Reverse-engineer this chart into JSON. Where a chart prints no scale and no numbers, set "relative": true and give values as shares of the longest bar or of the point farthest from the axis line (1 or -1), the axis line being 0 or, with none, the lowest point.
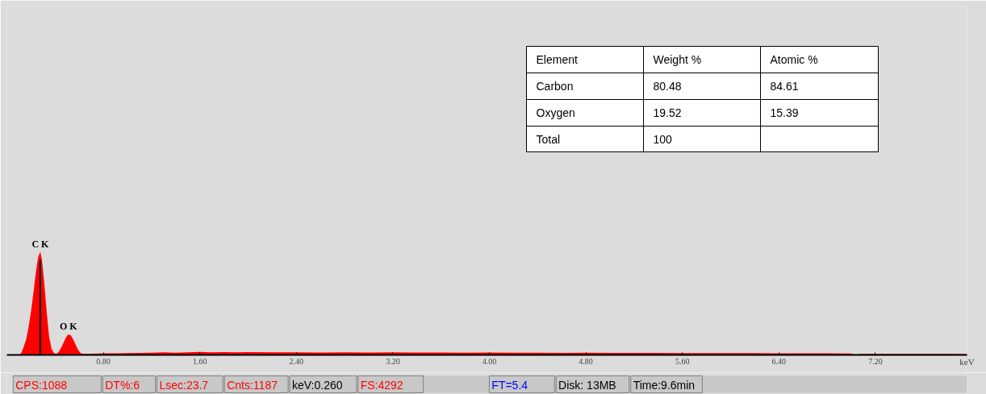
{
  "chart_data": {
    "type": "area",
    "relative": true,
    "xlabel": "keV",
    "color": "#ff0000",
    "x": [
      0.1,
      0.12,
      0.14,
      0.16,
      0.18,
      0.2,
      0.22,
      0.24,
      0.26,
      0.277,
      0.29,
      0.31,
      0.33,
      0.35,
      0.37,
      0.39,
      0.41,
      0.43,
      0.45,
      0.47,
      0.49,
      0.51,
      0.53,
      0.55,
      0.57,
      0.59,
      0.61,
      0.63,
      0.66,
      0.7,
      0.8,
      0.9,
      1.0,
      1.1,
      1.2,
      1.3,
      1.4,
      1.5,
      1.6,
      1.7,
      1.8,
      1.9,
      2.0,
      2.2,
      2.4,
      2.6,
      2.8,
      3.0,
      3.2,
      3.4,
      3.6,
      3.8,
      4.0,
      4.2,
      4.4,
      4.6,
      4.8,
      5.0,
      5.2,
      5.4,
      5.6,
      5.8,
      6.0,
      6.2,
      6.4,
      6.6,
      6.8,
      7.0,
      7.04,
      7.08,
      7.2,
      7.4,
      7.6,
      7.8,
      7.96
    ],
    "values": [
      0,
      0.02,
      0.08,
      0.15,
      0.27,
      0.42,
      0.6,
      0.8,
      0.95,
      1.0,
      0.93,
      0.7,
      0.42,
      0.18,
      0.06,
      0.02,
      0.01,
      0.03,
      0.07,
      0.12,
      0.17,
      0.2,
      0.19,
      0.15,
      0.1,
      0.05,
      0.02,
      0.01,
      0.01,
      0.012,
      0.015,
      0.015,
      0.018,
      0.02,
      0.022,
      0.025,
      0.022,
      0.025,
      0.03,
      0.025,
      0.028,
      0.025,
      0.027,
      0.025,
      0.026,
      0.024,
      0.025,
      0.024,
      0.025,
      0.023,
      0.024,
      0.022,
      0.023,
      0.022,
      0.021,
      0.02,
      0.021,
      0.02,
      0.019,
      0.019,
      0.018,
      0.018,
      0.017,
      0.017,
      0.016,
      0.016,
      0.015,
      0.014,
      0.0,
      0.012,
      0.01,
      0.01,
      0.009,
      0.009,
      0.008
    ],
    "xlim": [
      0,
      7.96
    ],
    "xticks": [
      {
        "value": 0.8,
        "label": "0.80"
      },
      {
        "value": 1.6,
        "label": "1.60"
      },
      {
        "value": 2.4,
        "label": "2.40"
      },
      {
        "value": 3.2,
        "label": "3.20"
      },
      {
        "value": 4.0,
        "label": "4.00"
      },
      {
        "value": 4.8,
        "label": "4.80"
      },
      {
        "value": 5.6,
        "label": "5.60"
      },
      {
        "value": 6.4,
        "label": "6.40"
      },
      {
        "value": 7.2,
        "label": "7.20"
      }
    ],
    "ref_lines": [
      {
        "axis": "x",
        "value": 0.277,
        "color": "#000000"
      }
    ],
    "grid": false,
    "annotations": [
      {
        "text": "C K",
        "x": 0.277,
        "y": 1.0
      },
      {
        "text": "O K",
        "x": 0.51,
        "y": 0.2
      },
      "Element",
      "Weight %",
      "Atomic %",
      "Carbon",
      "80.48",
      "84.61",
      "Oxygen",
      "19.52",
      "15.39",
      "Total",
      "100",
      "CPS:1088",
      "DT%:6",
      "Lsec:23.7",
      "Cnts:1187",
      "keV:0.260",
      "FS:4292",
      "FT=5.4",
      "Disk:  13MB",
      "Time:9.6min"
    ]
  }
}
